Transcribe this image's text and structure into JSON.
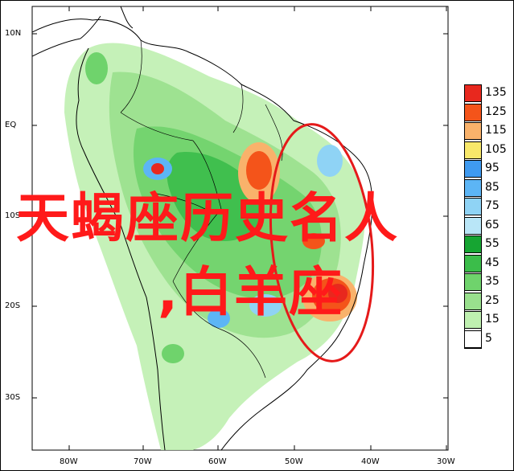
{
  "map": {
    "lat_labels": [
      "10N",
      "EQ",
      "10S",
      "20S",
      "30S"
    ],
    "lon_labels": [
      "80W",
      "70W",
      "60W",
      "50W",
      "40W",
      "30W"
    ]
  },
  "legend": {
    "levels": [
      {
        "label": "135",
        "color": "#e8281e"
      },
      {
        "label": "125",
        "color": "#f4541a"
      },
      {
        "label": "115",
        "color": "#f9b26b"
      },
      {
        "label": "105",
        "color": "#f8e86a"
      },
      {
        "label": "95",
        "color": "#3f9af0"
      },
      {
        "label": "85",
        "color": "#5cb5f5"
      },
      {
        "label": "75",
        "color": "#8fd3f5"
      },
      {
        "label": "65",
        "color": "#b9e6f7"
      },
      {
        "label": "55",
        "color": "#16a532"
      },
      {
        "label": "45",
        "color": "#3bbd4a"
      },
      {
        "label": "35",
        "color": "#6fd36c"
      },
      {
        "label": "25",
        "color": "#99e08d"
      },
      {
        "label": "15",
        "color": "#bff0b0"
      },
      {
        "label": "5",
        "color": "#ffffff"
      }
    ]
  },
  "overlay": {
    "line1": "天蝎座历史名人",
    "line2": ",白羊座",
    "text_color": "#ff1a1a",
    "circle_color": "#e51a1a"
  }
}
